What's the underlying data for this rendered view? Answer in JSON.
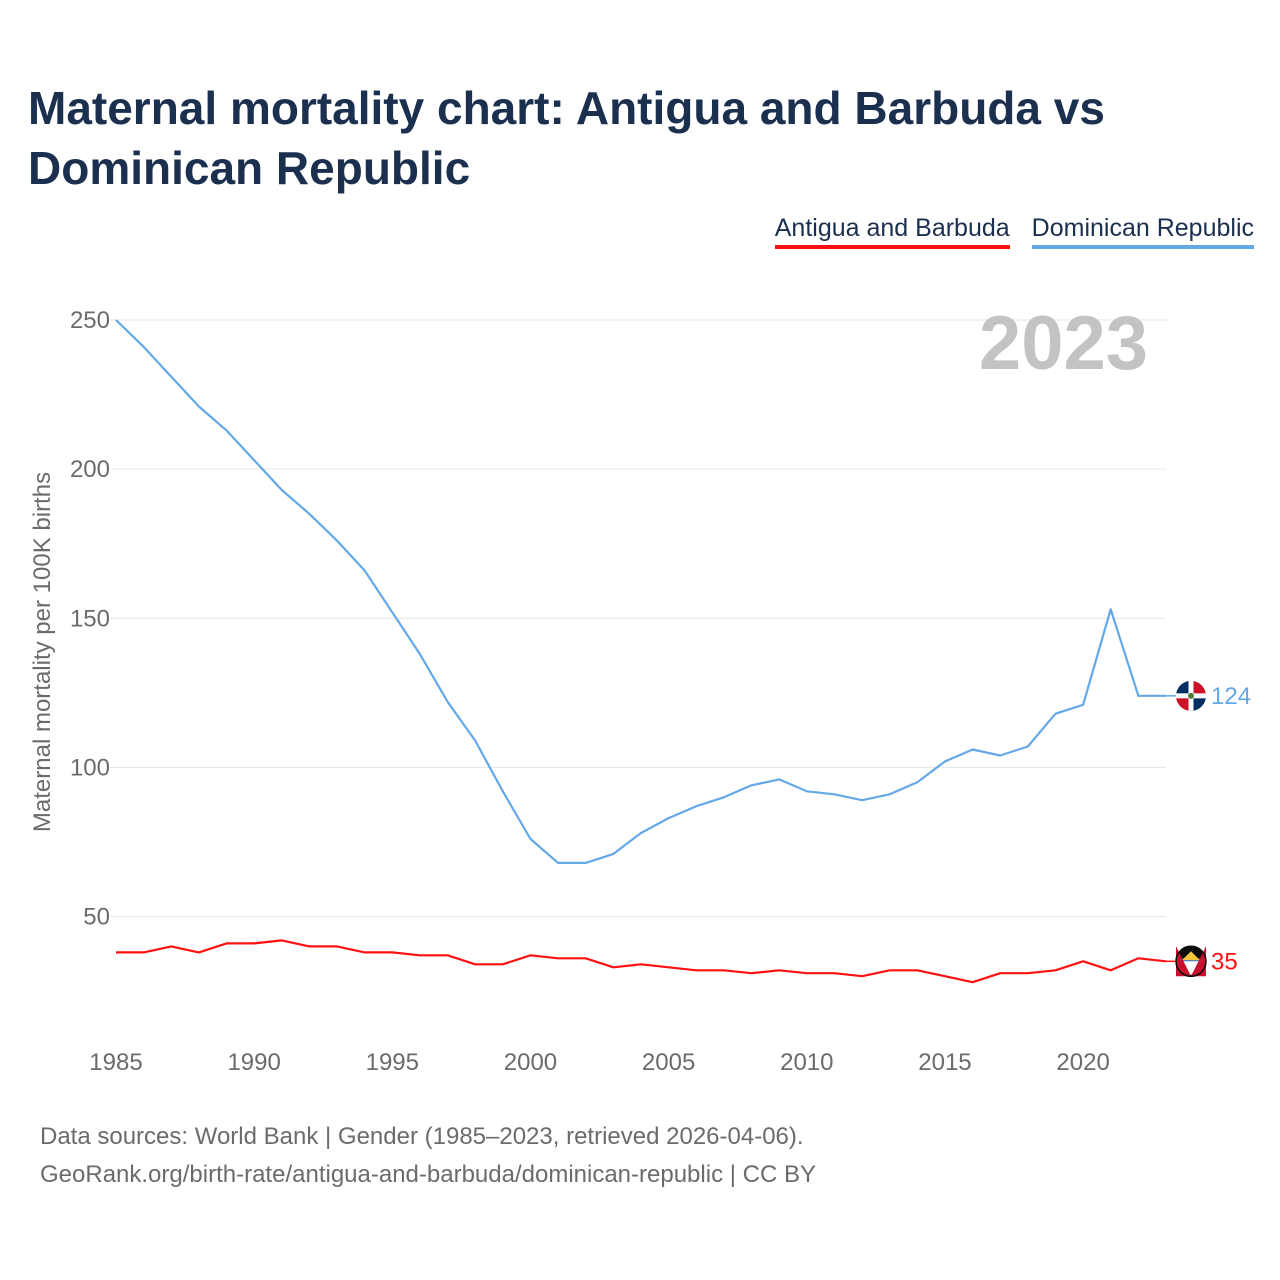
{
  "title": "Maternal mortality chart: Antigua and Barbuda vs Dominican Republic",
  "year_label": "2023",
  "legend": [
    {
      "label": "Antigua and Barbuda",
      "color": "#ff1010"
    },
    {
      "label": "Dominican Republic",
      "color": "#64a8e8"
    }
  ],
  "footer": {
    "line1": "Data sources: World Bank | Gender (1985–2023, retrieved 2026-04-06).",
    "line2": "GeoRank.org/birth-rate/antigua-and-barbuda/dominican-republic | CC BY"
  },
  "chart_data": {
    "type": "line",
    "ylabel": "Maternal mortality per 100K births",
    "xlabel": "",
    "xlim": [
      1985,
      2023
    ],
    "ylim": [
      17,
      250
    ],
    "x_ticks": [
      1985,
      1990,
      1995,
      2000,
      2005,
      2010,
      2015,
      2020
    ],
    "y_ticks": [
      50,
      100,
      150,
      200,
      250
    ],
    "x": [
      1985,
      1986,
      1987,
      1988,
      1989,
      1990,
      1991,
      1992,
      1993,
      1994,
      1995,
      1996,
      1997,
      1998,
      1999,
      2000,
      2001,
      2002,
      2003,
      2004,
      2005,
      2006,
      2007,
      2008,
      2009,
      2010,
      2011,
      2012,
      2013,
      2014,
      2015,
      2016,
      2017,
      2018,
      2019,
      2020,
      2021,
      2022,
      2023
    ],
    "series": [
      {
        "name": "Antigua and Barbuda",
        "color": "#ff1010",
        "end_label": "35",
        "values": [
          38,
          38,
          40,
          38,
          41,
          41,
          42,
          40,
          40,
          38,
          38,
          37,
          37,
          34,
          34,
          37,
          36,
          36,
          33,
          34,
          33,
          32,
          32,
          31,
          32,
          31,
          31,
          30,
          32,
          32,
          30,
          28,
          31,
          31,
          32,
          35,
          32,
          36,
          35
        ]
      },
      {
        "name": "Dominican Republic",
        "color": "#64a8e8",
        "end_label": "124",
        "values": [
          250,
          241,
          231,
          221,
          213,
          203,
          193,
          185,
          176,
          166,
          152,
          138,
          122,
          109,
          92,
          76,
          68,
          68,
          71,
          78,
          83,
          87,
          90,
          94,
          96,
          92,
          91,
          89,
          91,
          95,
          102,
          106,
          104,
          107,
          118,
          121,
          153,
          124,
          124
        ]
      }
    ]
  }
}
